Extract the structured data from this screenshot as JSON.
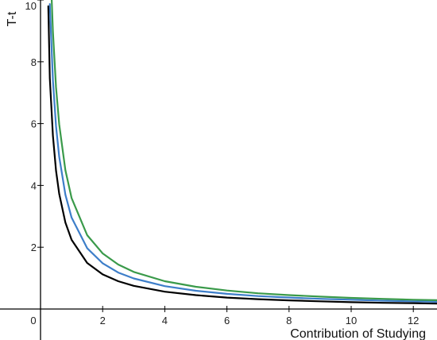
{
  "chart_data": {
    "type": "line",
    "title": "",
    "xlabel": "Contribution of Studying",
    "ylabel": "T-t",
    "xlim": [
      -1,
      13
    ],
    "ylim": [
      -1,
      10.1
    ],
    "grid": false,
    "x_ticks": [
      0,
      2,
      4,
      6,
      8,
      10,
      12
    ],
    "y_ticks": [
      2,
      4,
      6,
      8,
      10
    ],
    "x_tick_labels": [
      "0",
      "2",
      "4",
      "6",
      "8",
      "10",
      "12"
    ],
    "y_tick_labels": [
      "2",
      "4",
      "6",
      "8",
      "10"
    ],
    "series": [
      {
        "color": "#000000",
        "x": [
          0.25,
          0.3,
          0.4,
          0.5,
          0.6,
          0.8,
          1,
          1.5,
          2,
          2.5,
          3,
          4,
          5,
          6,
          7,
          8,
          9,
          10,
          11,
          12,
          13
        ],
        "y": [
          9.8,
          7.47,
          5.61,
          4.48,
          3.73,
          2.8,
          2.24,
          1.49,
          1.12,
          0.9,
          0.75,
          0.56,
          0.45,
          0.37,
          0.32,
          0.28,
          0.25,
          0.22,
          0.2,
          0.19,
          0.17
        ]
      },
      {
        "color": "#3d7ec9",
        "x": [
          0.3,
          0.4,
          0.5,
          0.6,
          0.8,
          1,
          1.5,
          2,
          2.5,
          3,
          4,
          5,
          6,
          7,
          8,
          9,
          10,
          11,
          12,
          13
        ],
        "y": [
          9.87,
          7.4,
          5.92,
          4.93,
          3.7,
          2.96,
          1.97,
          1.48,
          1.18,
          0.99,
          0.74,
          0.59,
          0.49,
          0.42,
          0.37,
          0.33,
          0.3,
          0.27,
          0.25,
          0.23
        ]
      },
      {
        "color": "#3a9a4a",
        "x": [
          0.35,
          0.4,
          0.5,
          0.6,
          0.8,
          1,
          1.5,
          2,
          2.5,
          3,
          4,
          5,
          6,
          7,
          8,
          9,
          10,
          11,
          12,
          13
        ],
        "y": [
          10.26,
          8.98,
          7.18,
          5.98,
          4.49,
          3.59,
          2.39,
          1.8,
          1.44,
          1.2,
          0.9,
          0.72,
          0.6,
          0.51,
          0.45,
          0.4,
          0.36,
          0.33,
          0.3,
          0.28
        ]
      }
    ]
  }
}
